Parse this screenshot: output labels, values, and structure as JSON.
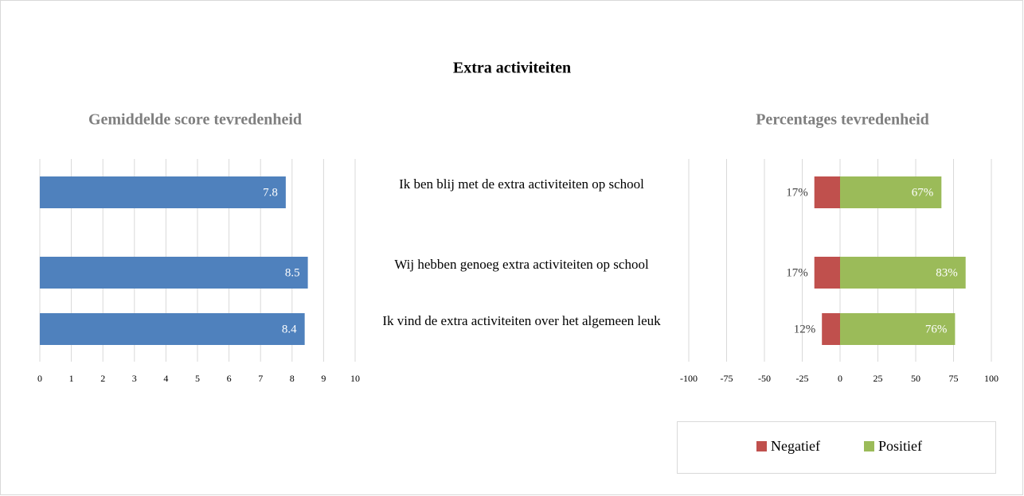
{
  "title": "Extra activiteiten",
  "chart_data": [
    {
      "type": "bar",
      "title": "Gemiddelde score tevredenheid",
      "categories": [
        "Ik ben blij met de extra activiteiten op school",
        "Wij hebben genoeg extra activiteiten op school",
        "Ik vind de extra activiteiten over het algemeen leuk"
      ],
      "values": [
        7.8,
        8.5,
        8.4
      ],
      "color": "#4f81bd",
      "xlim": [
        0,
        10
      ],
      "xticks": [
        0,
        1,
        2,
        3,
        4,
        5,
        6,
        7,
        8,
        9,
        10
      ],
      "grid": true
    },
    {
      "type": "diverging_bar",
      "title": "Percentages tevredenheid",
      "series": [
        {
          "name": "Negatief",
          "color": "#c0504d",
          "values": [
            -17,
            -17,
            -12
          ],
          "value_labels": [
            "17%",
            "17%",
            "12%"
          ]
        },
        {
          "name": "Positief",
          "color": "#9bbb59",
          "values": [
            67,
            83,
            76
          ],
          "value_labels": [
            "67%",
            "83%",
            "76%"
          ]
        }
      ],
      "xlim": [
        -100,
        100
      ],
      "xticks": [
        -100,
        -75,
        -50,
        -25,
        0,
        25,
        50,
        75,
        100
      ],
      "grid": true,
      "legend": "bottom"
    }
  ]
}
